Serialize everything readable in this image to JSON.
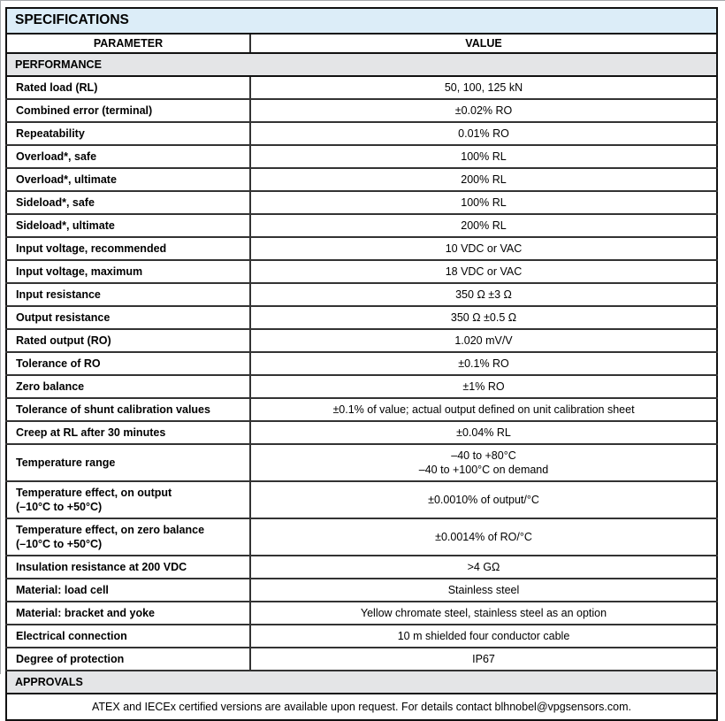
{
  "table": {
    "title": "SPECIFICATIONS",
    "columns": {
      "parameter": "PARAMETER",
      "value": "VALUE"
    },
    "sections": {
      "performance": "PERFORMANCE",
      "approvals": "APPROVALS"
    },
    "rows": [
      {
        "parameter": "Rated load (RL)",
        "value": "50, 100, 125 kN"
      },
      {
        "parameter": "Combined error (terminal)",
        "value": "±0.02% RO"
      },
      {
        "parameter": "Repeatability",
        "value": "0.01% RO"
      },
      {
        "parameter": "Overload*, safe",
        "value": "100% RL"
      },
      {
        "parameter": "Overload*, ultimate",
        "value": "200% RL"
      },
      {
        "parameter": "Sideload*, safe",
        "value": "100% RL"
      },
      {
        "parameter": "Sideload*, ultimate",
        "value": "200% RL"
      },
      {
        "parameter": "Input voltage, recommended",
        "value": "10 VDC or VAC"
      },
      {
        "parameter": "Input voltage, maximum",
        "value": "18 VDC or VAC"
      },
      {
        "parameter": "Input resistance",
        "value": "350 Ω ±3 Ω"
      },
      {
        "parameter": "Output resistance",
        "value": "350 Ω ±0.5 Ω"
      },
      {
        "parameter": "Rated output (RO)",
        "value": "1.020 mV/V"
      },
      {
        "parameter": "Tolerance of RO",
        "value": "±0.1% RO"
      },
      {
        "parameter": "Zero balance",
        "value": "±1% RO"
      },
      {
        "parameter": "Tolerance of shunt calibration values",
        "value": "±0.1% of value; actual output defined on unit calibration sheet"
      },
      {
        "parameter": "Creep at RL after 30 minutes",
        "value": "±0.04% RL"
      },
      {
        "parameter": "Temperature range",
        "value": "–40 to +80°C\n–40 to +100°C on demand"
      },
      {
        "parameter": "Temperature effect, on output\n(–10°C to +50°C)",
        "value": "±0.0010% of output/°C"
      },
      {
        "parameter": "Temperature effect, on zero balance\n(–10°C to +50°C)",
        "value": "±0.0014% of RO/°C"
      },
      {
        "parameter": "Insulation resistance at 200 VDC",
        "value": ">4 GΩ"
      },
      {
        "parameter": "Material: load cell",
        "value": "Stainless steel"
      },
      {
        "parameter": "Material: bracket and yoke",
        "value": "Yellow chromate steel, stainless steel as an option"
      },
      {
        "parameter": "Electrical connection",
        "value": "10 m shielded four conductor cable"
      },
      {
        "parameter": "Degree of protection",
        "value": "IP67"
      }
    ],
    "footer_note": "ATEX and IECEx certified versions are available upon request. For details contact blhnobel@vpgsensors.com.",
    "colors": {
      "title_bg": "#dcedf8",
      "section_bg": "#e4e5e7"
    }
  }
}
